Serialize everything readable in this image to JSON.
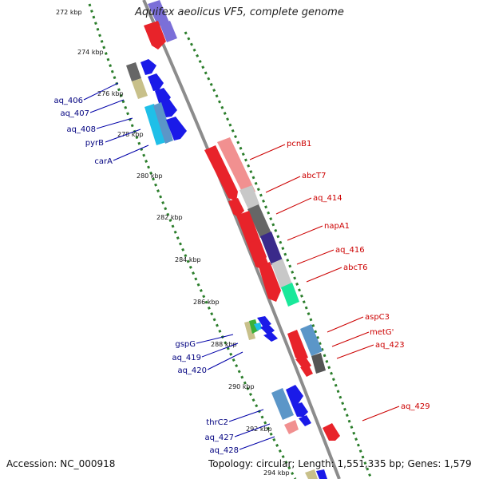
{
  "title": "Aquifex aeolicus VF5, complete genome",
  "accession": "Accession: NC_000918",
  "topology": "Topology: circular; Length: 1,551,335 bp; Genes: 1,579",
  "colors": {
    "backbone": "#8c8c8c",
    "tick": "#2a7d2a",
    "forward_label": "#00007f",
    "reverse_label": "#cc0000"
  },
  "kbp_labels": [
    "272 kbp",
    "274 kbp",
    "276 kbp",
    "278 kbp",
    "280 kbp",
    "282 kbp",
    "284 kbp",
    "286 kbp",
    "288 kbp",
    "290 kbp",
    "292 kbp",
    "294 kbp"
  ],
  "forward_genes": [
    {
      "label": "aq_406"
    },
    {
      "label": "aq_407"
    },
    {
      "label": "aq_408"
    },
    {
      "label": "pyrB"
    },
    {
      "label": "carA"
    },
    {
      "label": "gspG"
    },
    {
      "label": "aq_419"
    },
    {
      "label": "aq_420"
    },
    {
      "label": "thrC2"
    },
    {
      "label": "aq_427"
    },
    {
      "label": "aq_428"
    }
  ],
  "reverse_genes": [
    {
      "label": "pcnB1"
    },
    {
      "label": "abcT7"
    },
    {
      "label": "aq_414"
    },
    {
      "label": "napA1"
    },
    {
      "label": "aq_416"
    },
    {
      "label": "abcT6"
    },
    {
      "label": "aspC3"
    },
    {
      "label": "metG'"
    },
    {
      "label": "aq_423"
    },
    {
      "label": "aq_429"
    }
  ]
}
